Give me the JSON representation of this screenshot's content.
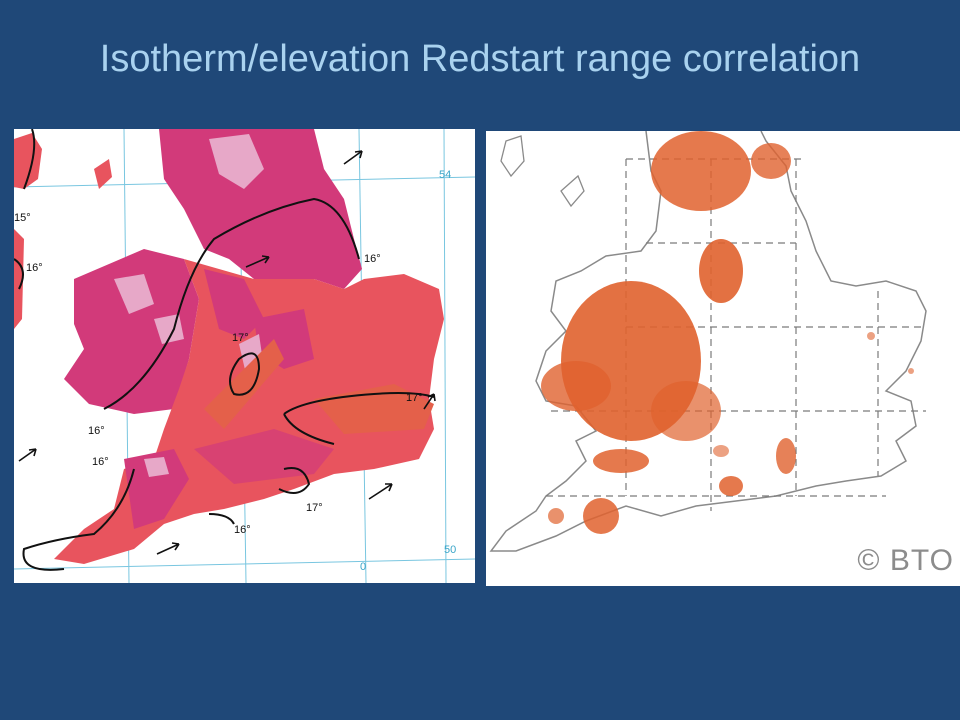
{
  "slide": {
    "title": "Isotherm/elevation Redstart range correlation"
  },
  "left_map": {
    "isotherm_labels": [
      "15°",
      "16°",
      "16°",
      "17°",
      "16°",
      "17°",
      "16°",
      "17°",
      "16°"
    ],
    "grid_labels": [
      "54",
      "50",
      "0"
    ],
    "colors": {
      "lowland": "#e8545e",
      "upland": "#d23a7a",
      "high": "#e7a8c8",
      "sea": "#ffffff",
      "grid": "#79c6e0",
      "isotherm": "#111111",
      "warm": "#e4604a"
    }
  },
  "right_map": {
    "copyright": "© BTO",
    "colors": {
      "range": "#e0622e",
      "coast": "#8a8a8a",
      "grid": "#7a7a7a"
    }
  }
}
